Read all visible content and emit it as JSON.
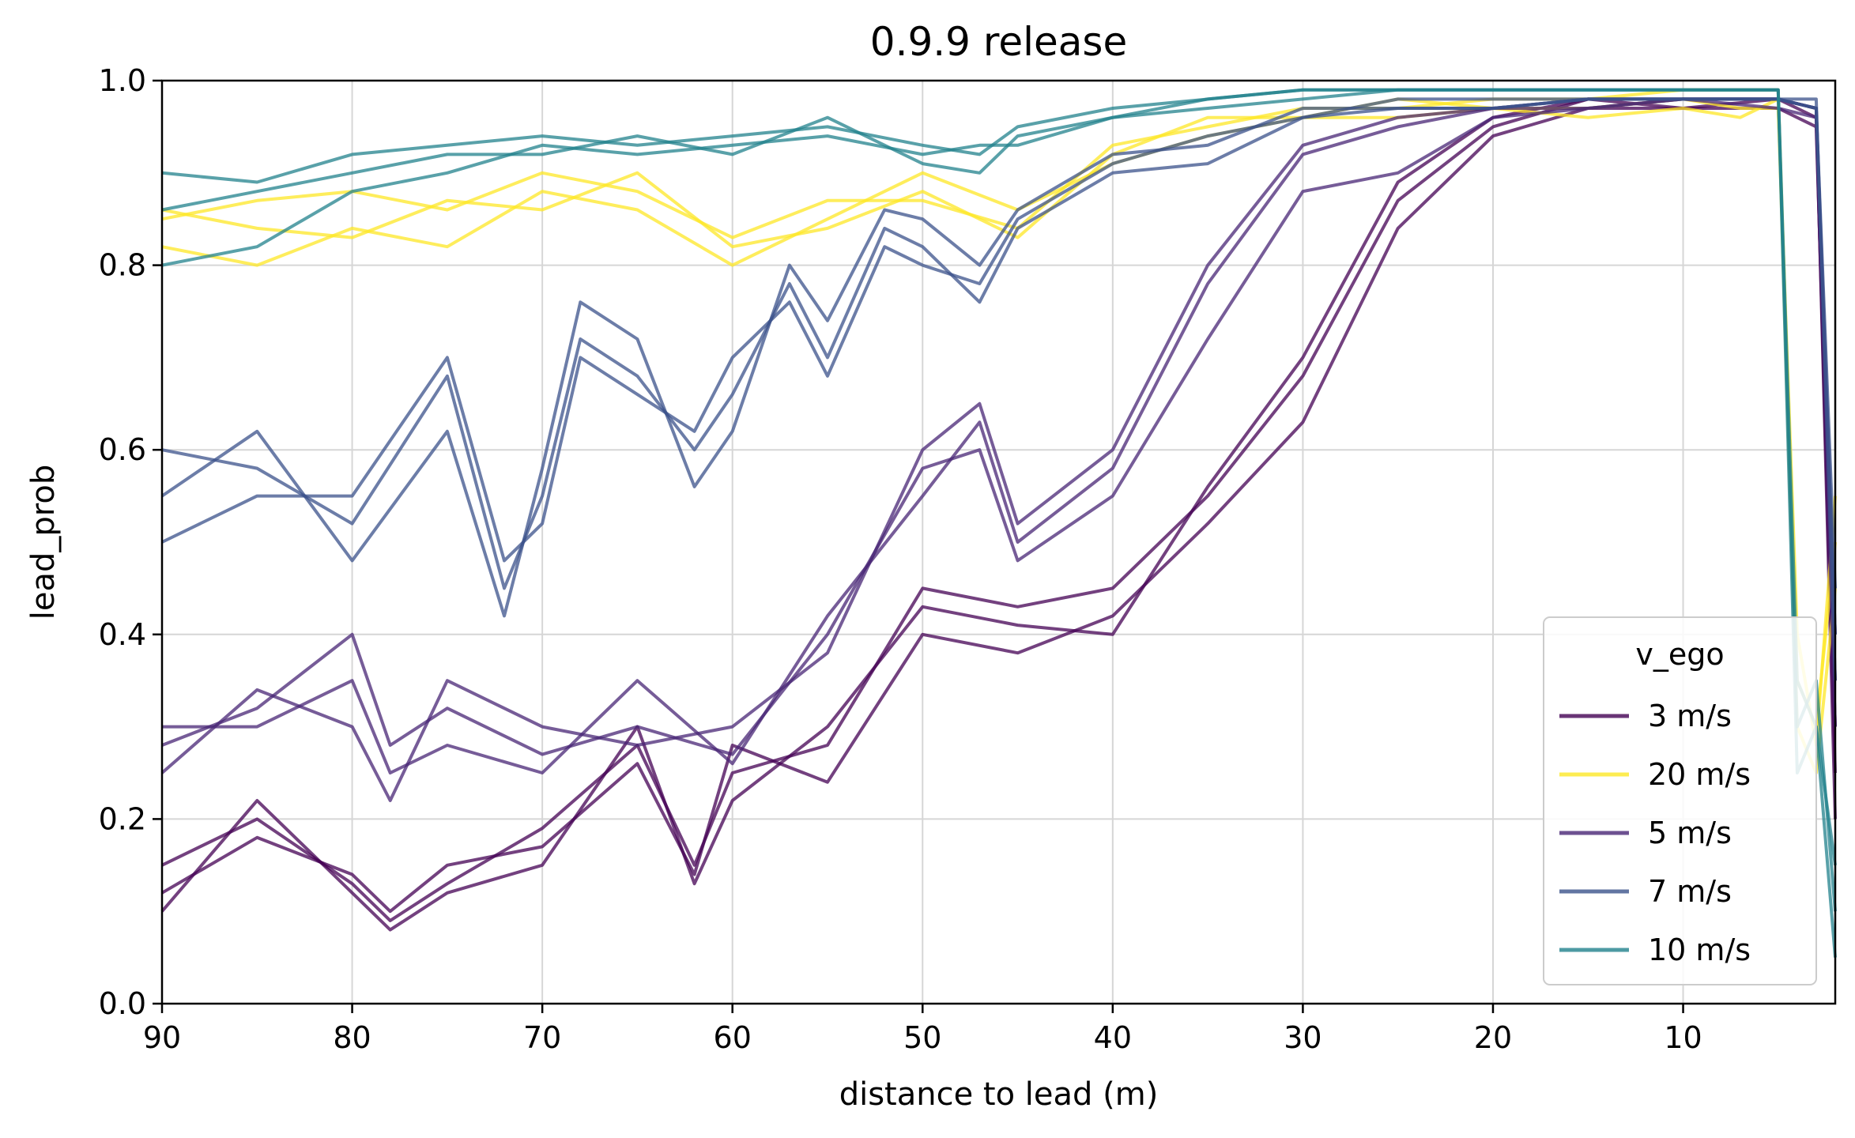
{
  "chart_data": {
    "type": "line",
    "title": "0.9.9 release",
    "xlabel": "distance to lead (m)",
    "ylabel": "lead_prob",
    "xlim": [
      90,
      2
    ],
    "ylim": [
      0,
      1
    ],
    "x_inverted": true,
    "xticks": [
      90,
      80,
      70,
      60,
      50,
      40,
      30,
      20,
      10
    ],
    "xtick_labels": [
      "90",
      "80",
      "70",
      "60",
      "50",
      "40",
      "30",
      "20",
      "10"
    ],
    "yticks": [
      0,
      0.2,
      0.4,
      0.6,
      0.8,
      1.0
    ],
    "ytick_labels": [
      "0.0",
      "0.2",
      "0.4",
      "0.6",
      "0.8",
      "1.0"
    ],
    "grid": true,
    "legend": {
      "title": "v_ego",
      "placement": "bottom-right",
      "entries": [
        "3 m/s",
        "20 m/s",
        "5 m/s",
        "7 m/s",
        "10 m/s"
      ]
    },
    "colors": {
      "3 m/s": "#440154",
      "20 m/s": "#fde725",
      "5 m/s": "#482575",
      "7 m/s": "#3b528b",
      "10 m/s": "#21818c"
    },
    "series": [
      {
        "name": "3 m/s",
        "x": [
          90,
          85,
          80,
          78,
          75,
          70,
          65,
          62,
          60,
          55,
          50,
          45,
          40,
          35,
          30,
          25,
          20,
          15,
          10,
          5,
          3,
          2
        ],
        "y": [
          0.15,
          0.2,
          0.13,
          0.09,
          0.13,
          0.19,
          0.28,
          0.15,
          0.25,
          0.28,
          0.45,
          0.43,
          0.45,
          0.55,
          0.68,
          0.87,
          0.95,
          0.98,
          0.98,
          0.98,
          0.96,
          0.25
        ]
      },
      {
        "name": "3 m/s",
        "x": [
          90,
          85,
          80,
          78,
          75,
          70,
          65,
          62,
          60,
          55,
          50,
          45,
          40,
          35,
          30,
          25,
          20,
          15,
          10,
          5,
          3,
          2
        ],
        "y": [
          0.12,
          0.18,
          0.14,
          0.1,
          0.15,
          0.17,
          0.26,
          0.14,
          0.28,
          0.24,
          0.4,
          0.38,
          0.42,
          0.52,
          0.63,
          0.84,
          0.94,
          0.97,
          0.97,
          0.97,
          0.95,
          0.3
        ]
      },
      {
        "name": "3 m/s",
        "x": [
          90,
          85,
          80,
          78,
          75,
          70,
          65,
          62,
          60,
          55,
          50,
          45,
          40,
          35,
          30,
          25,
          20,
          15,
          10,
          5,
          3,
          2
        ],
        "y": [
          0.1,
          0.22,
          0.12,
          0.08,
          0.12,
          0.15,
          0.3,
          0.13,
          0.22,
          0.3,
          0.43,
          0.41,
          0.4,
          0.56,
          0.7,
          0.89,
          0.96,
          0.98,
          0.97,
          0.98,
          0.97,
          0.2
        ]
      },
      {
        "name": "20 m/s",
        "x": [
          90,
          85,
          80,
          75,
          70,
          65,
          60,
          55,
          50,
          45,
          40,
          35,
          30,
          25,
          20,
          15,
          10,
          7,
          5,
          4,
          3,
          2
        ],
        "y": [
          0.85,
          0.87,
          0.88,
          0.86,
          0.9,
          0.88,
          0.83,
          0.87,
          0.87,
          0.84,
          0.93,
          0.95,
          0.97,
          0.97,
          0.98,
          0.98,
          0.99,
          0.99,
          0.99,
          0.35,
          0.3,
          0.5
        ]
      },
      {
        "name": "20 m/s",
        "x": [
          90,
          85,
          80,
          75,
          70,
          65,
          60,
          55,
          50,
          45,
          40,
          35,
          30,
          25,
          20,
          15,
          10,
          7,
          5,
          4,
          3,
          2
        ],
        "y": [
          0.82,
          0.8,
          0.84,
          0.82,
          0.88,
          0.86,
          0.8,
          0.85,
          0.9,
          0.86,
          0.91,
          0.94,
          0.96,
          0.96,
          0.97,
          0.96,
          0.97,
          0.96,
          0.98,
          0.3,
          0.25,
          0.45
        ]
      },
      {
        "name": "20 m/s",
        "x": [
          90,
          85,
          80,
          75,
          70,
          65,
          60,
          55,
          50,
          45,
          40,
          35,
          30,
          25,
          20,
          15,
          10,
          7,
          5,
          4,
          3,
          2
        ],
        "y": [
          0.86,
          0.84,
          0.83,
          0.87,
          0.86,
          0.9,
          0.82,
          0.84,
          0.88,
          0.83,
          0.92,
          0.96,
          0.96,
          0.98,
          0.97,
          0.97,
          0.98,
          0.97,
          0.97,
          0.4,
          0.28,
          0.55
        ]
      },
      {
        "name": "5 m/s",
        "x": [
          90,
          85,
          80,
          78,
          75,
          70,
          65,
          60,
          55,
          50,
          47,
          45,
          40,
          35,
          30,
          25,
          20,
          15,
          10,
          5,
          3,
          2
        ],
        "y": [
          0.28,
          0.32,
          0.4,
          0.28,
          0.32,
          0.27,
          0.3,
          0.27,
          0.4,
          0.58,
          0.6,
          0.48,
          0.55,
          0.72,
          0.88,
          0.9,
          0.96,
          0.97,
          0.98,
          0.97,
          0.96,
          0.35
        ]
      },
      {
        "name": "5 m/s",
        "x": [
          90,
          85,
          80,
          78,
          75,
          70,
          65,
          60,
          55,
          50,
          47,
          45,
          40,
          35,
          30,
          25,
          20,
          15,
          10,
          5,
          3,
          2
        ],
        "y": [
          0.3,
          0.3,
          0.35,
          0.25,
          0.28,
          0.25,
          0.35,
          0.26,
          0.42,
          0.55,
          0.63,
          0.5,
          0.58,
          0.78,
          0.92,
          0.95,
          0.97,
          0.97,
          0.98,
          0.98,
          0.97,
          0.4
        ]
      },
      {
        "name": "5 m/s",
        "x": [
          90,
          85,
          80,
          78,
          75,
          70,
          65,
          60,
          55,
          50,
          47,
          45,
          40,
          35,
          30,
          25,
          20,
          15,
          10,
          5,
          3,
          2
        ],
        "y": [
          0.25,
          0.34,
          0.3,
          0.22,
          0.35,
          0.3,
          0.28,
          0.3,
          0.38,
          0.6,
          0.65,
          0.52,
          0.6,
          0.8,
          0.93,
          0.96,
          0.97,
          0.98,
          0.98,
          0.98,
          0.97,
          0.3
        ]
      },
      {
        "name": "7 m/s",
        "x": [
          90,
          85,
          80,
          75,
          72,
          70,
          68,
          65,
          62,
          60,
          57,
          55,
          52,
          50,
          47,
          45,
          40,
          35,
          30,
          25,
          20,
          15,
          10,
          5,
          3,
          2
        ],
        "y": [
          0.6,
          0.58,
          0.52,
          0.68,
          0.45,
          0.55,
          0.72,
          0.68,
          0.6,
          0.66,
          0.78,
          0.7,
          0.84,
          0.82,
          0.76,
          0.84,
          0.9,
          0.91,
          0.96,
          0.97,
          0.97,
          0.98,
          0.98,
          0.98,
          0.97,
          0.45
        ]
      },
      {
        "name": "7 m/s",
        "x": [
          90,
          85,
          80,
          75,
          72,
          70,
          68,
          65,
          62,
          60,
          57,
          55,
          52,
          50,
          47,
          45,
          40,
          35,
          30,
          25,
          20,
          15,
          10,
          5,
          3,
          2
        ],
        "y": [
          0.55,
          0.62,
          0.48,
          0.62,
          0.42,
          0.58,
          0.76,
          0.72,
          0.56,
          0.62,
          0.8,
          0.74,
          0.86,
          0.85,
          0.8,
          0.86,
          0.92,
          0.93,
          0.97,
          0.97,
          0.97,
          0.98,
          0.98,
          0.98,
          0.97,
          0.4
        ]
      },
      {
        "name": "7 m/s",
        "x": [
          90,
          85,
          80,
          75,
          72,
          70,
          68,
          65,
          62,
          60,
          57,
          55,
          52,
          50,
          47,
          45,
          40,
          35,
          30,
          25,
          20,
          15,
          10,
          5,
          3,
          2
        ],
        "y": [
          0.5,
          0.55,
          0.55,
          0.7,
          0.48,
          0.52,
          0.7,
          0.66,
          0.62,
          0.7,
          0.76,
          0.68,
          0.82,
          0.8,
          0.78,
          0.85,
          0.91,
          0.94,
          0.96,
          0.98,
          0.98,
          0.98,
          0.98,
          0.98,
          0.98,
          0.35
        ]
      },
      {
        "name": "10 m/s",
        "x": [
          90,
          85,
          80,
          75,
          70,
          65,
          60,
          55,
          50,
          47,
          45,
          40,
          35,
          30,
          25,
          20,
          15,
          10,
          7,
          5,
          4,
          3,
          2
        ],
        "y": [
          0.9,
          0.89,
          0.92,
          0.93,
          0.94,
          0.93,
          0.94,
          0.95,
          0.93,
          0.92,
          0.95,
          0.97,
          0.98,
          0.99,
          0.99,
          0.99,
          0.99,
          0.99,
          0.99,
          0.99,
          0.3,
          0.35,
          0.1
        ]
      },
      {
        "name": "10 m/s",
        "x": [
          90,
          85,
          80,
          75,
          70,
          65,
          60,
          55,
          50,
          47,
          45,
          40,
          35,
          30,
          25,
          20,
          15,
          10,
          7,
          5,
          4,
          3,
          2
        ],
        "y": [
          0.86,
          0.88,
          0.9,
          0.92,
          0.92,
          0.94,
          0.92,
          0.96,
          0.91,
          0.9,
          0.94,
          0.96,
          0.98,
          0.99,
          0.99,
          0.99,
          0.99,
          0.99,
          0.99,
          0.99,
          0.25,
          0.3,
          0.05
        ]
      },
      {
        "name": "10 m/s",
        "x": [
          90,
          85,
          80,
          75,
          70,
          65,
          60,
          55,
          50,
          47,
          45,
          40,
          35,
          30,
          25,
          20,
          15,
          10,
          7,
          5,
          4,
          3,
          2
        ],
        "y": [
          0.8,
          0.82,
          0.88,
          0.9,
          0.93,
          0.92,
          0.93,
          0.94,
          0.92,
          0.93,
          0.93,
          0.96,
          0.97,
          0.98,
          0.99,
          0.99,
          0.99,
          0.99,
          0.99,
          0.99,
          0.35,
          0.3,
          0.15
        ]
      }
    ]
  }
}
